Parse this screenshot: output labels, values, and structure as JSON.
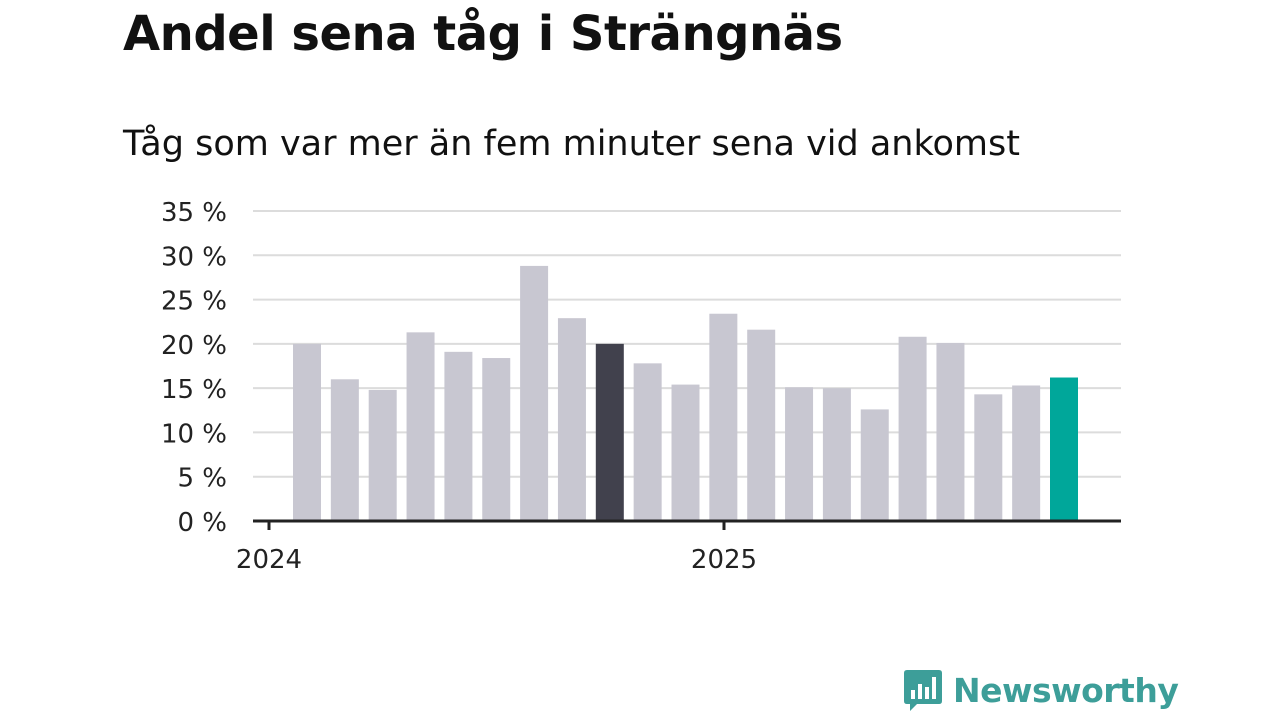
{
  "header": {
    "title": "Andel sena tåg i Strängnäs",
    "subtitle": "Tåg som var mer än fem minuter sena vid ankomst"
  },
  "chart_data": {
    "type": "bar",
    "title": "Andel sena tåg i Strängnäs",
    "subtitle": "Tåg som var mer än fem minuter sena vid ankomst",
    "xlabel": "",
    "ylabel": "",
    "unit": "%",
    "ylim": [
      0,
      35
    ],
    "yticks": [
      0,
      5,
      10,
      15,
      20,
      25,
      30,
      35
    ],
    "ytick_labels": [
      "0 %",
      "5 %",
      "10 %",
      "15 %",
      "20 %",
      "25 %",
      "30 %",
      "35 %"
    ],
    "x_tick_labels": [
      "2024",
      "2025"
    ],
    "grid": true,
    "values": [
      20.0,
      16.0,
      14.8,
      21.3,
      19.1,
      18.4,
      28.8,
      22.9,
      20.0,
      17.8,
      15.4,
      23.4,
      21.6,
      15.1,
      15.0,
      12.6,
      20.8,
      20.1,
      14.3,
      15.3,
      16.2
    ],
    "highlight": [
      {
        "index": 8,
        "color": "#41414d"
      },
      {
        "index": 20,
        "color": "#00a79a"
      }
    ],
    "colors": {
      "bar": "#c8c7d1",
      "grid": "#dcdcdc",
      "axis": "#222222"
    }
  },
  "brand": {
    "name": "Newsworthy",
    "color": "#3d9e99",
    "icon": "bar-chart-speech-bubble-icon"
  }
}
